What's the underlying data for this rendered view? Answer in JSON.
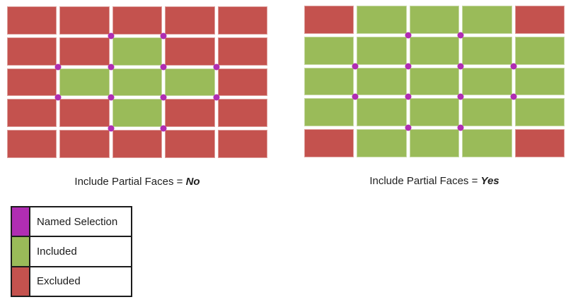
{
  "colors": {
    "named_selection": "#b02db2",
    "included": "#9abb59",
    "excluded": "#c4524e",
    "background": "#ffffff",
    "text": "#1f1f1f",
    "legend_border": "#1c1c1c"
  },
  "panels": [
    {
      "id": "include-partial-faces-no",
      "caption_prefix": "Include Partial Faces = ",
      "caption_value": "No",
      "grid": {
        "rows": 5,
        "cols": 5,
        "cells": [
          [
            "excluded",
            "excluded",
            "excluded",
            "excluded",
            "excluded"
          ],
          [
            "excluded",
            "excluded",
            "included",
            "excluded",
            "excluded"
          ],
          [
            "excluded",
            "included",
            "included",
            "included",
            "excluded"
          ],
          [
            "excluded",
            "excluded",
            "included",
            "excluded",
            "excluded"
          ],
          [
            "excluded",
            "excluded",
            "excluded",
            "excluded",
            "excluded"
          ]
        ]
      },
      "named_selection_nodes": [
        [
          2,
          1
        ],
        [
          3,
          1
        ],
        [
          1,
          2
        ],
        [
          2,
          2
        ],
        [
          3,
          2
        ],
        [
          4,
          2
        ],
        [
          1,
          3
        ],
        [
          2,
          3
        ],
        [
          3,
          3
        ],
        [
          4,
          3
        ],
        [
          2,
          4
        ],
        [
          3,
          4
        ]
      ]
    },
    {
      "id": "include-partial-faces-yes",
      "caption_prefix": "Include Partial Faces = ",
      "caption_value": "Yes",
      "grid": {
        "rows": 5,
        "cols": 5,
        "cells": [
          [
            "excluded",
            "included",
            "included",
            "included",
            "excluded"
          ],
          [
            "included",
            "included",
            "included",
            "included",
            "included"
          ],
          [
            "included",
            "included",
            "included",
            "included",
            "included"
          ],
          [
            "included",
            "included",
            "included",
            "included",
            "included"
          ],
          [
            "excluded",
            "included",
            "included",
            "included",
            "excluded"
          ]
        ]
      },
      "named_selection_nodes": [
        [
          2,
          1
        ],
        [
          3,
          1
        ],
        [
          1,
          2
        ],
        [
          2,
          2
        ],
        [
          3,
          2
        ],
        [
          4,
          2
        ],
        [
          1,
          3
        ],
        [
          2,
          3
        ],
        [
          3,
          3
        ],
        [
          4,
          3
        ],
        [
          2,
          4
        ],
        [
          3,
          4
        ]
      ]
    }
  ],
  "legend": {
    "items": [
      {
        "key": "named_selection",
        "label": "Named Selection"
      },
      {
        "key": "included",
        "label": "Included"
      },
      {
        "key": "excluded",
        "label": "Excluded"
      }
    ]
  }
}
